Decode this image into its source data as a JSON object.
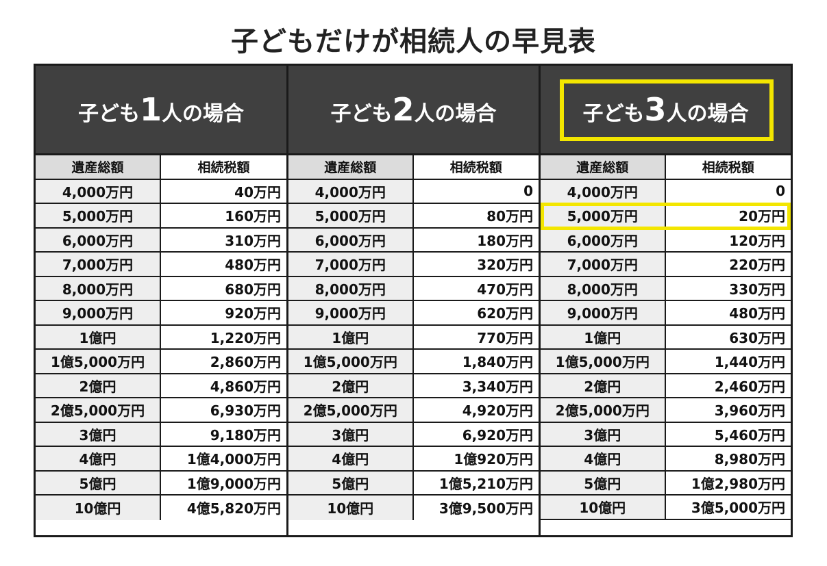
{
  "title": "子どもだけが相続人の早見表",
  "colors": {
    "header_bg": "#404040",
    "highlight": "#f3e600",
    "label_bg": "#eeeeee"
  },
  "column_headers": {
    "estate": "遺産総額",
    "tax": "相続税額"
  },
  "groups": [
    {
      "heading_prefix": "子ども",
      "heading_num": "1",
      "heading_suffix": "人の場合",
      "rows": [
        [
          "4,000万円",
          "40万円"
        ],
        [
          "5,000万円",
          "160万円"
        ],
        [
          "6,000万円",
          "310万円"
        ],
        [
          "7,000万円",
          "480万円"
        ],
        [
          "8,000万円",
          "680万円"
        ],
        [
          "9,000万円",
          "920万円"
        ],
        [
          "1億円",
          "1,220万円"
        ],
        [
          "1億5,000万円",
          "2,860万円"
        ],
        [
          "2億円",
          "4,860万円"
        ],
        [
          "2億5,000万円",
          "6,930万円"
        ],
        [
          "3億円",
          "9,180万円"
        ],
        [
          "4億円",
          "1億4,000万円"
        ],
        [
          "5億円",
          "1億9,000万円"
        ],
        [
          "10億円",
          "4億5,820万円"
        ]
      ]
    },
    {
      "heading_prefix": "子ども",
      "heading_num": "2",
      "heading_suffix": "人の場合",
      "rows": [
        [
          "4,000万円",
          "0"
        ],
        [
          "5,000万円",
          "80万円"
        ],
        [
          "6,000万円",
          "180万円"
        ],
        [
          "7,000万円",
          "320万円"
        ],
        [
          "8,000万円",
          "470万円"
        ],
        [
          "9,000万円",
          "620万円"
        ],
        [
          "1億円",
          "770万円"
        ],
        [
          "1億5,000万円",
          "1,840万円"
        ],
        [
          "2億円",
          "3,340万円"
        ],
        [
          "2億5,000万円",
          "4,920万円"
        ],
        [
          "3億円",
          "6,920万円"
        ],
        [
          "4億円",
          "1億920万円"
        ],
        [
          "5億円",
          "1億5,210万円"
        ],
        [
          "10億円",
          "3億9,500万円"
        ]
      ]
    },
    {
      "heading_prefix": "子ども",
      "heading_num": "3",
      "heading_suffix": "人の場合",
      "rows": [
        [
          "4,000万円",
          "0"
        ],
        [
          "5,000万円",
          "20万円"
        ],
        [
          "6,000万円",
          "120万円"
        ],
        [
          "7,000万円",
          "220万円"
        ],
        [
          "8,000万円",
          "330万円"
        ],
        [
          "9,000万円",
          "480万円"
        ],
        [
          "1億円",
          "630万円"
        ],
        [
          "1億5,000万円",
          "1,440万円"
        ],
        [
          "2億円",
          "2,460万円"
        ],
        [
          "2億5,000万円",
          "3,960万円"
        ],
        [
          "3億円",
          "5,460万円"
        ],
        [
          "4億円",
          "8,980万円"
        ],
        [
          "5億円",
          "1億2,980万円"
        ],
        [
          "10億円",
          "3億5,000万円"
        ]
      ]
    }
  ]
}
